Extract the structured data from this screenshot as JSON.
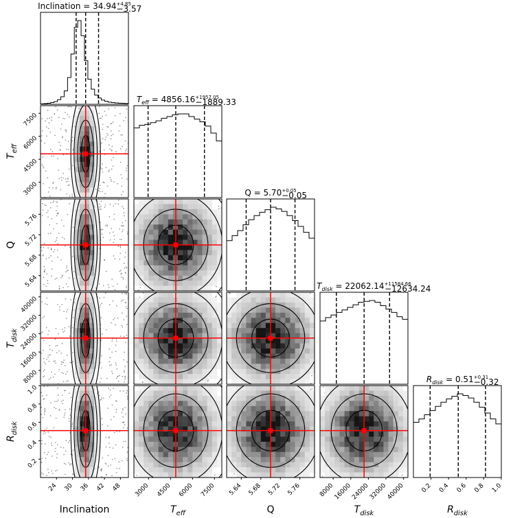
{
  "chart_data": {
    "type": "corner",
    "parameters": [
      {
        "key": "inc",
        "label": "Inclination",
        "symbol": "Inclination",
        "range": [
          18,
          51
        ],
        "ticks": [
          "24",
          "30",
          "36",
          "42",
          "48"
        ],
        "ytick_labels": [],
        "title_value": "34.94",
        "title_plus": "+4.85",
        "title_minus": "−3.57",
        "median": 34.94,
        "quantiles": [
          31.37,
          34.94,
          39.79
        ],
        "truth": 35.0,
        "hist_bins": [
          0.005,
          0.008,
          0.012,
          0.02,
          0.032,
          0.055,
          0.09,
          0.16,
          0.32,
          0.6,
          0.92,
          1.0,
          0.82,
          0.52,
          0.3,
          0.18,
          0.11,
          0.075,
          0.05,
          0.036,
          0.026,
          0.02,
          0.016,
          0.013,
          0.011,
          0.009
        ],
        "sigma": 3.0
      },
      {
        "key": "teff",
        "label": "T_eff",
        "symbol": "T",
        "subscript": "eff",
        "range": [
          2000,
          8000
        ],
        "ticks": [
          "3000",
          "4500",
          "6000",
          "7500"
        ],
        "ytick_labels": [
          "3000",
          "4500",
          "6000",
          "7500"
        ],
        "title_value": "4856.16",
        "title_plus": "+1957.05",
        "title_minus": "−1889.33",
        "median": 4856.16,
        "quantiles": [
          2966.83,
          4856.16,
          6813.21
        ],
        "truth": 4856.16,
        "hist_bins": [
          0.8,
          0.83,
          0.84,
          0.86,
          0.88,
          0.91,
          0.93,
          0.95,
          0.96,
          0.96,
          0.93,
          0.9,
          0.87,
          0.82,
          0.74,
          0.65
        ],
        "sigma": 2200
      },
      {
        "key": "q",
        "label": "Q",
        "symbol": "Q",
        "range": [
          5.61,
          5.79
        ],
        "ticks": [
          "5.64",
          "5.68",
          "5.72",
          "5.76"
        ],
        "ytick_labels": [
          "5.64",
          "5.68",
          "5.72",
          "5.76"
        ],
        "title_value": "5.70",
        "title_plus": "+0.05",
        "title_minus": "−0.05",
        "median": 5.7,
        "quantiles": [
          5.65,
          5.7,
          5.75
        ],
        "truth": 5.7,
        "hist_bins": [
          0.6,
          0.66,
          0.72,
          0.79,
          0.85,
          0.9,
          0.94,
          0.97,
          1.0,
          0.98,
          0.95,
          0.9,
          0.84,
          0.77,
          0.7,
          0.63
        ],
        "sigma": 0.07
      },
      {
        "key": "tdisk",
        "label": "T_disk",
        "symbol": "T",
        "subscript": "disk",
        "range": [
          2000,
          42000
        ],
        "ticks": [
          "8000",
          "16000",
          "24000",
          "32000",
          "40000"
        ],
        "ytick_labels": [
          "8000",
          "16000",
          "24000",
          "32000",
          "40000"
        ],
        "title_value": "22062.14",
        "title_plus": "+11584.66",
        "title_minus": "−12634.24",
        "median": 22062.14,
        "quantiles": [
          9427.9,
          22062.14,
          33646.8
        ],
        "truth": 22062.14,
        "hist_bins": [
          0.74,
          0.78,
          0.81,
          0.84,
          0.87,
          0.9,
          0.93,
          0.96,
          0.97,
          0.98,
          0.96,
          0.92,
          0.88,
          0.84,
          0.79,
          0.76
        ],
        "sigma": 15000
      },
      {
        "key": "rdisk",
        "label": "R_disk",
        "symbol": "R",
        "subscript": "disk",
        "range": [
          0.0,
          1.0
        ],
        "ticks": [
          "0.2",
          "0.4",
          "0.6",
          "0.8",
          "1.0"
        ],
        "ytick_labels": [
          "0.2",
          "0.4",
          "0.6",
          "0.8",
          "1.0"
        ],
        "title_value": "0.51",
        "title_plus": "+0.31",
        "title_minus": "−0.32",
        "median": 0.51,
        "quantiles": [
          0.19,
          0.51,
          0.82
        ],
        "truth": 0.51,
        "hist_bins": [
          0.66,
          0.7,
          0.75,
          0.8,
          0.85,
          0.9,
          0.94,
          0.97,
          1.0,
          0.98,
          0.95,
          0.9,
          0.84,
          0.77,
          0.7,
          0.64
        ],
        "sigma": 0.4
      }
    ],
    "quantile_line_style": "dashed",
    "truth_color": "#ff0000",
    "contour_levels": 4
  }
}
